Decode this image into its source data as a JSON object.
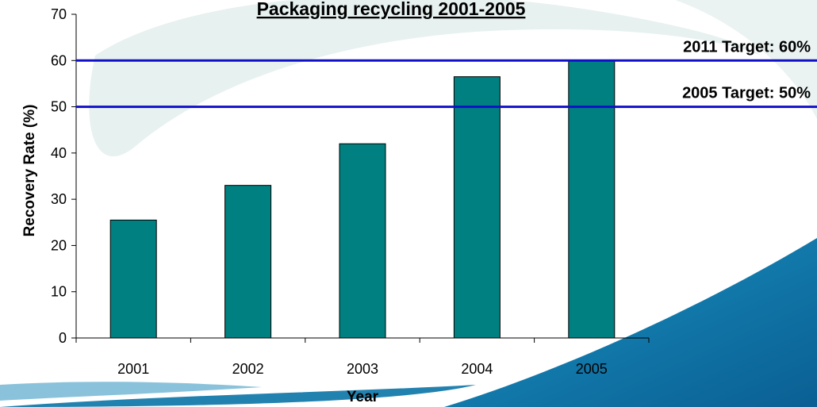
{
  "colors": {
    "bar": "#008080",
    "bar_stroke": "#000000",
    "target_line": "#1010c8",
    "background_swoosh_light": "#dde9e8",
    "background_swoosh_dark": "#0a74a6"
  },
  "chart_data": {
    "type": "bar",
    "title": "Packaging recycling 2001-2005",
    "xlabel": "Year",
    "ylabel": "Recovery Rate (%)",
    "categories": [
      "2001",
      "2002",
      "2003",
      "2004",
      "2005"
    ],
    "values": [
      25.5,
      33,
      42,
      56.5,
      60
    ],
    "ylim": [
      0,
      70
    ],
    "yticks": [
      0,
      10,
      20,
      30,
      40,
      50,
      60,
      70
    ],
    "grid": false,
    "legend": "none",
    "reference_lines": [
      {
        "value": 60,
        "label": "2011 Target: 60%"
      },
      {
        "value": 50,
        "label": "2005 Target: 50%"
      }
    ]
  }
}
